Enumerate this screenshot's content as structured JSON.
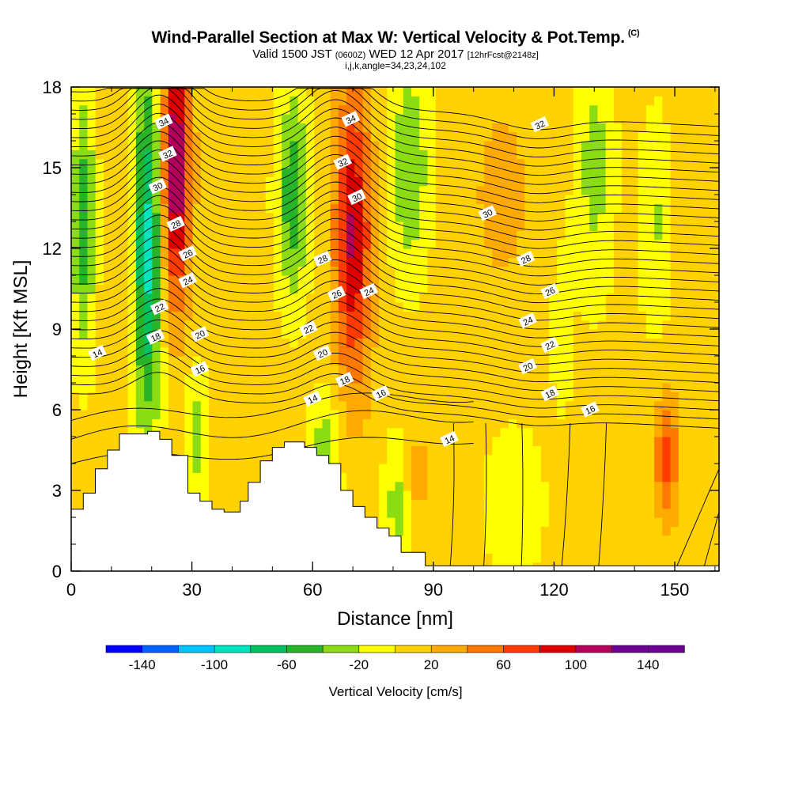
{
  "title": {
    "main": "Wind-Parallel Section at Max W: Vertical Velocity & Pot.Temp.",
    "unit_mark": "(C)",
    "valid_a": "Valid 1500 JST",
    "valid_b": "(0600Z)",
    "valid_c": "WED 12 Apr 2017",
    "valid_d": "[12hrFcst@2148z]",
    "indices": "i,j,k,angle=34,23,24,102"
  },
  "colors": {
    "levels": [
      "#0000ff",
      "#0062ff",
      "#00c2ff",
      "#00e5c0",
      "#00c060",
      "#28b428",
      "#8cdc14",
      "#ffff00",
      "#ffd200",
      "#ffaa00",
      "#ff7800",
      "#ff3c00",
      "#dc0000",
      "#b4005a",
      "#6e0096"
    ],
    "terrain": "#ffffff",
    "contour": "#000000"
  },
  "chart_data": {
    "type": "heatmap",
    "xlabel": "Distance [nm]",
    "ylabel": "Height [Kft MSL]",
    "xlim": [
      0,
      161
    ],
    "ylim": [
      0,
      18
    ],
    "xticks": [
      "0",
      "30",
      "60",
      "90",
      "120",
      "150"
    ],
    "yticks": [
      "0",
      "3",
      "6",
      "9",
      "12",
      "15",
      "18"
    ],
    "colorbar": {
      "label": "Vertical Velocity [cm/s]",
      "ticks": [
        "-140",
        "-100",
        "-60",
        "-20",
        "20",
        "60",
        "100",
        "140"
      ],
      "boundaries": [
        -160,
        -140,
        -120,
        -100,
        -80,
        -60,
        -40,
        -20,
        0,
        20,
        40,
        60,
        80,
        100,
        120,
        140,
        160
      ]
    },
    "contour_field": "Pot.Temp. (C)",
    "contour_levels": [
      14,
      16,
      18,
      20,
      22,
      24,
      26,
      28,
      30,
      32,
      34
    ],
    "contour_labels": [
      {
        "text": "34",
        "x": 23,
        "y": 16.7
      },
      {
        "text": "32",
        "x": 24,
        "y": 15.5
      },
      {
        "text": "30",
        "x": 21.5,
        "y": 14.3
      },
      {
        "text": "28",
        "x": 26,
        "y": 12.9
      },
      {
        "text": "26",
        "x": 29,
        "y": 11.8
      },
      {
        "text": "24",
        "x": 29,
        "y": 10.8
      },
      {
        "text": "22",
        "x": 22,
        "y": 9.8
      },
      {
        "text": "20",
        "x": 32,
        "y": 8.8
      },
      {
        "text": "18",
        "x": 21,
        "y": 8.7
      },
      {
        "text": "16",
        "x": 32,
        "y": 7.5
      },
      {
        "text": "14",
        "x": 6.5,
        "y": 8.1
      },
      {
        "text": "34",
        "x": 69.5,
        "y": 16.8
      },
      {
        "text": "32",
        "x": 67.5,
        "y": 15.2
      },
      {
        "text": "30",
        "x": 71,
        "y": 13.9
      },
      {
        "text": "28",
        "x": 62.5,
        "y": 11.6
      },
      {
        "text": "26",
        "x": 66,
        "y": 10.3
      },
      {
        "text": "24",
        "x": 74,
        "y": 10.4
      },
      {
        "text": "22",
        "x": 59,
        "y": 9.0
      },
      {
        "text": "20",
        "x": 62.5,
        "y": 8.1
      },
      {
        "text": "18",
        "x": 68,
        "y": 7.1
      },
      {
        "text": "16",
        "x": 77,
        "y": 6.6
      },
      {
        "text": "14",
        "x": 60,
        "y": 6.4
      },
      {
        "text": "14",
        "x": 94,
        "y": 4.9
      },
      {
        "text": "32",
        "x": 116.5,
        "y": 16.6
      },
      {
        "text": "30",
        "x": 103.5,
        "y": 13.3
      },
      {
        "text": "28",
        "x": 113,
        "y": 11.6
      },
      {
        "text": "26",
        "x": 119,
        "y": 10.4
      },
      {
        "text": "24",
        "x": 113.5,
        "y": 9.3
      },
      {
        "text": "22",
        "x": 119,
        "y": 8.4
      },
      {
        "text": "20",
        "x": 113.5,
        "y": 7.6
      },
      {
        "text": "18",
        "x": 119,
        "y": 6.6
      },
      {
        "text": "16",
        "x": 129,
        "y": 6.0
      }
    ]
  }
}
